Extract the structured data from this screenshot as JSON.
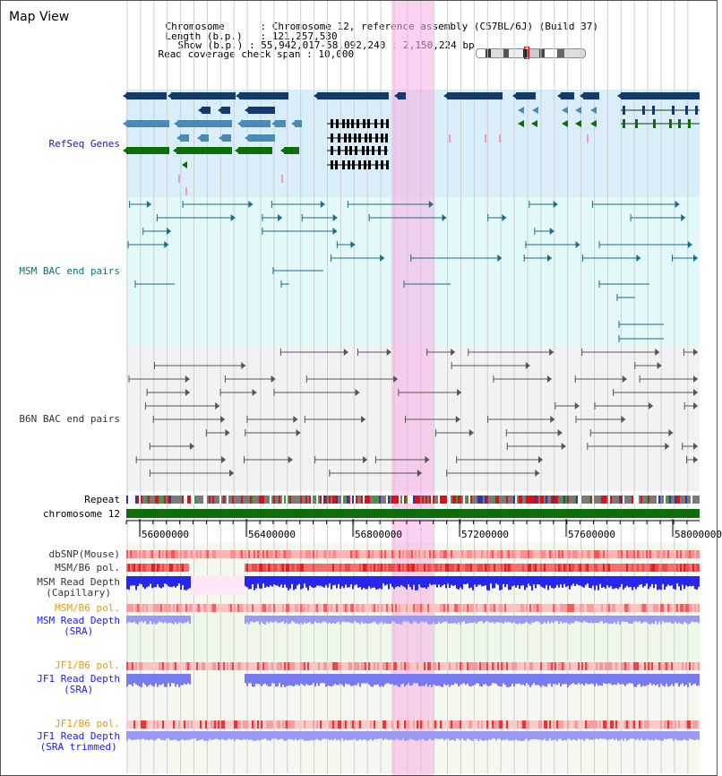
{
  "header": {
    "title": "Map View",
    "chromosome_key": "Chromosome",
    "chromosome_value": "Chromosome 12, reference assembly (C57BL/6J) (Build 37)",
    "length_key": "Length (b.p.)",
    "length_value": "121,257,530",
    "show_key": "Show (b.p.)",
    "show_value": "55,942,017-58,092,240 : 2,150,224 bp",
    "span_key": "Read coverage check span",
    "span_value": "10,000"
  },
  "tracks": {
    "refseq": "RefSeq Genes",
    "msm_bac": "MSM BAC end pairs",
    "b6n_bac": "B6N BAC end pairs",
    "repeat": "Repeat",
    "chromosome": "chromosome 12",
    "dbsnp": "dbSNP(Mouse)",
    "msm_b6_pol_1": "MSM/B6 pol.",
    "msm_depth_cap_1": "MSM Read Depth",
    "msm_depth_cap_2": "(Capillary)",
    "msm_b6_pol_2": "MSM/B6 pol.",
    "msm_depth_sra_1": "MSM Read Depth",
    "msm_depth_sra_2": "(SRA)",
    "jf1_b6_pol_1": "JF1/B6 pol.",
    "jf1_depth_sra_1": "JF1 Read Depth",
    "jf1_depth_sra_2": "(SRA)",
    "jf1_b6_pol_2": "JF1/B6 pol.",
    "jf1_depth_trim_1": "JF1 Read Depth",
    "jf1_depth_trim_2": "(SRA trimmed)"
  },
  "axis": {
    "ticks": [
      "56000000",
      "56400000",
      "56800000",
      "57200000",
      "57600000",
      "58000000"
    ]
  },
  "colors": {
    "gene_navy": "#123a6e",
    "gene_steel": "#4a8ab5",
    "gene_green": "#0b6e0b",
    "msm_bac_line": "#1b6d8a",
    "b6n_bac_line": "#555555",
    "highlight": "#f7c8ec",
    "label_navy": "#2020a0",
    "label_teal": "#0b6d80",
    "label_gray": "#333333",
    "label_orange": "#e89a00",
    "label_blue": "#1a1aff"
  }
}
